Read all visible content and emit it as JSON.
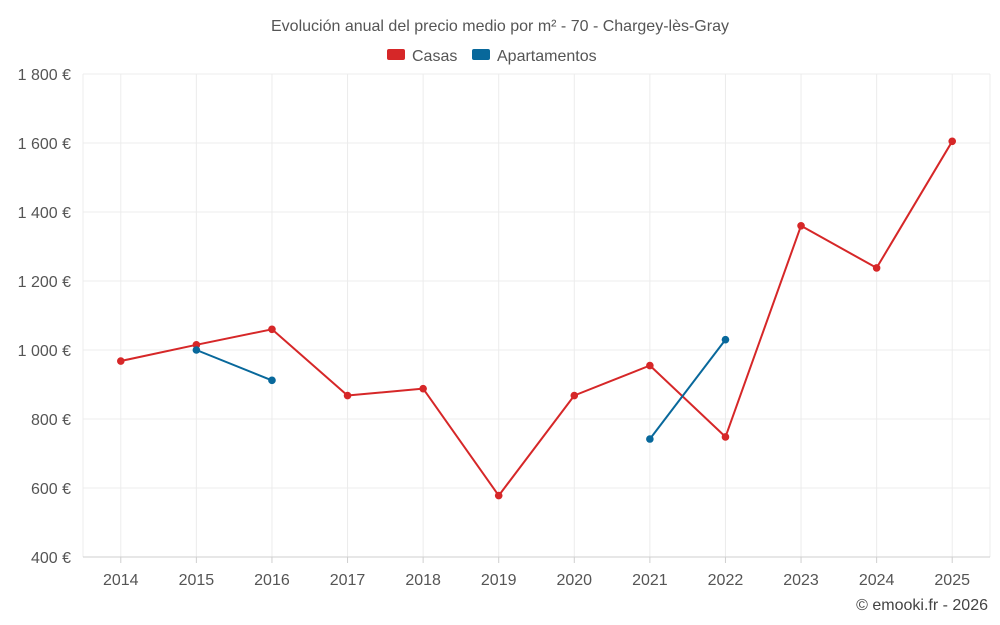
{
  "credit": "© emooki.fr - 2026",
  "chart_data": {
    "type": "line",
    "title": "Evolución anual del precio medio por m² - 70 - Chargey-lès-Gray",
    "categories": [
      "2014",
      "2015",
      "2016",
      "2017",
      "2018",
      "2019",
      "2020",
      "2021",
      "2022",
      "2023",
      "2024",
      "2025"
    ],
    "ylim": [
      400,
      1800
    ],
    "yticks": [
      400,
      600,
      800,
      1000,
      1200,
      1400,
      1600,
      1800
    ],
    "ytick_labels": [
      "400 €",
      "600 €",
      "800 €",
      "1 000 €",
      "1 200 €",
      "1 400 €",
      "1 600 €",
      "1 800 €"
    ],
    "legend_position": "top-center",
    "grid": true,
    "series": [
      {
        "name": "Casas",
        "color": "#d62728",
        "values": [
          968,
          1015,
          1060,
          868,
          888,
          578,
          868,
          955,
          748,
          1360,
          1238,
          1605
        ]
      },
      {
        "name": "Apartamentos",
        "color": "#08689b",
        "values": [
          null,
          1000,
          912,
          null,
          null,
          null,
          null,
          742,
          1030,
          null,
          null,
          null
        ]
      }
    ]
  }
}
